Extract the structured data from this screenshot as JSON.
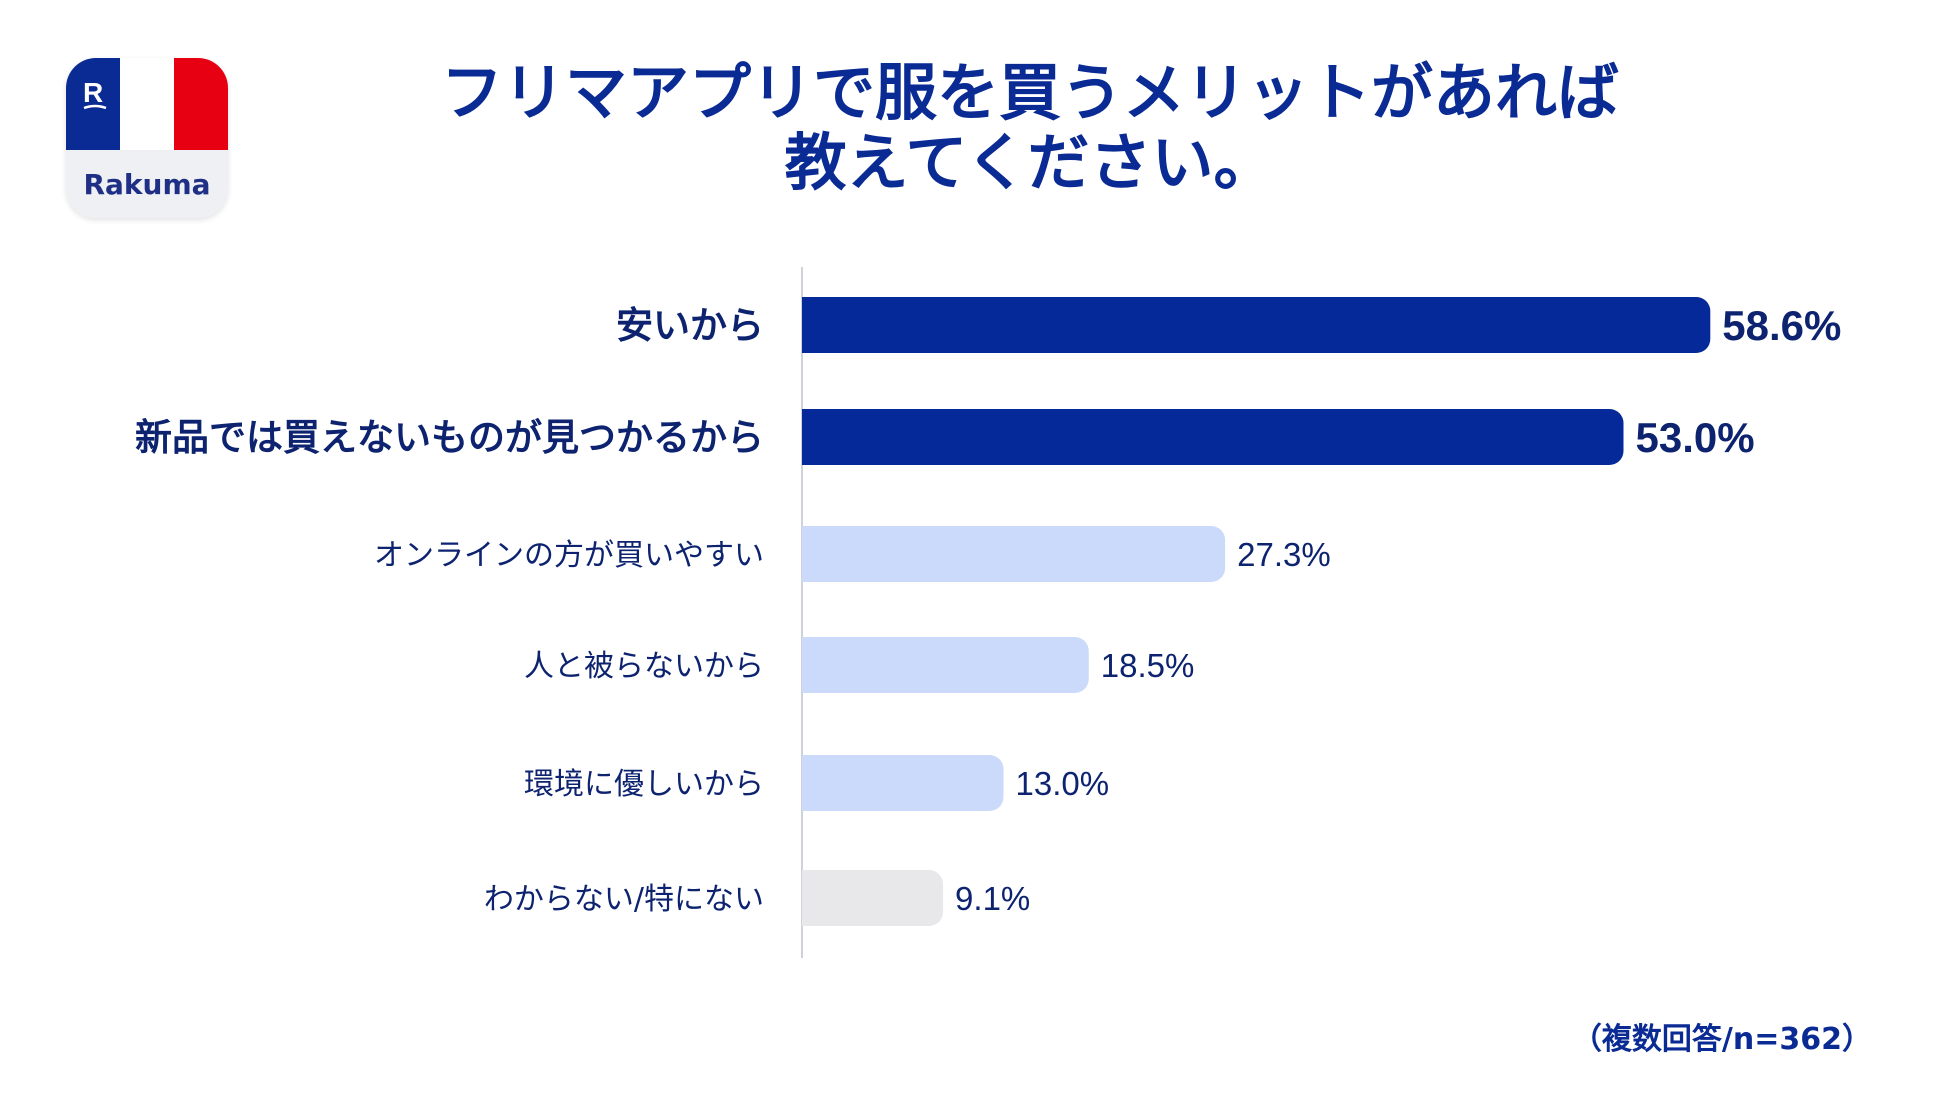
{
  "logo": {
    "name": "Rakuma",
    "mark": "R",
    "flag_colors": [
      "#0a2a94",
      "#ffffff",
      "#e60012"
    ]
  },
  "title_lines": [
    "フリマアプリで服を買うメリットがあれば",
    "教えてください。"
  ],
  "note": "（複数回答/n=362）",
  "colors": {
    "highlight": "#06299a",
    "normal": "#cbd9fb",
    "other": "#e8e8ea",
    "label_text": "#0d2370",
    "axis": "#cfd2d9"
  },
  "chart_data": {
    "type": "bar",
    "orientation": "horizontal",
    "categories": [
      "安いから",
      "新品では買えないものが見つかるから",
      "オンラインの方が買いやすい",
      "人と被らないから",
      "環境に優しいから",
      "わからない/特にない"
    ],
    "values": [
      58.6,
      53.0,
      27.3,
      18.5,
      13.0,
      9.1
    ],
    "value_labels": [
      "58.6%",
      "53.0%",
      "27.3%",
      "18.5%",
      "13.0%",
      "9.1%"
    ],
    "styles": [
      "highlight",
      "highlight",
      "normal",
      "normal",
      "normal",
      "other"
    ],
    "unit": "%",
    "xlim": [
      0,
      60
    ],
    "grid": false
  }
}
